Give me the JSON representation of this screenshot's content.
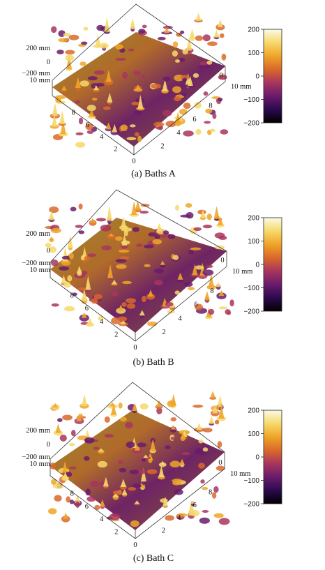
{
  "panels": [
    {
      "caption": "(a) Baths A",
      "z_labels": [
        "200 mm",
        "0",
        "−200 mm"
      ],
      "x_end_label": "10 mm",
      "y_end_label": "10 mm",
      "x_ticks": [
        "8",
        "6",
        "4",
        "2"
      ],
      "y_ticks": [
        "0",
        "8",
        "6",
        "4",
        "2"
      ],
      "origin_label": "0",
      "colorbar": [
        "200",
        "100",
        "0",
        "−100",
        "−200"
      ]
    },
    {
      "caption": "(b) Bath B",
      "z_labels": [
        "200 mm",
        "0",
        "−200 mm"
      ],
      "x_end_label": "10 mm",
      "y_end_label": "10 mm",
      "x_ticks": [
        "8",
        "6",
        "4",
        "2"
      ],
      "y_ticks": [
        "0",
        "8",
        "6",
        "4",
        "2"
      ],
      "origin_label": "0",
      "colorbar": [
        "200",
        "100",
        "0",
        "−100",
        "−200"
      ]
    },
    {
      "caption": "(c) Bath C",
      "z_labels": [
        "200 mm",
        "0",
        "−200 mm"
      ],
      "x_end_label": "10 mm",
      "y_end_label": "10 mm",
      "x_ticks": [
        "8",
        "6",
        "4",
        "2"
      ],
      "y_ticks": [
        "0",
        "8",
        "6",
        "4",
        "2"
      ],
      "origin_label": "0",
      "colorbar": [
        "200",
        "100",
        "0",
        "−100",
        "−200"
      ]
    }
  ],
  "colormap": [
    "#000000",
    "#2b0a4e",
    "#6a1b6b",
    "#a8355e",
    "#d9682b",
    "#efa429",
    "#f6d96b",
    "#fcfbe6"
  ]
}
